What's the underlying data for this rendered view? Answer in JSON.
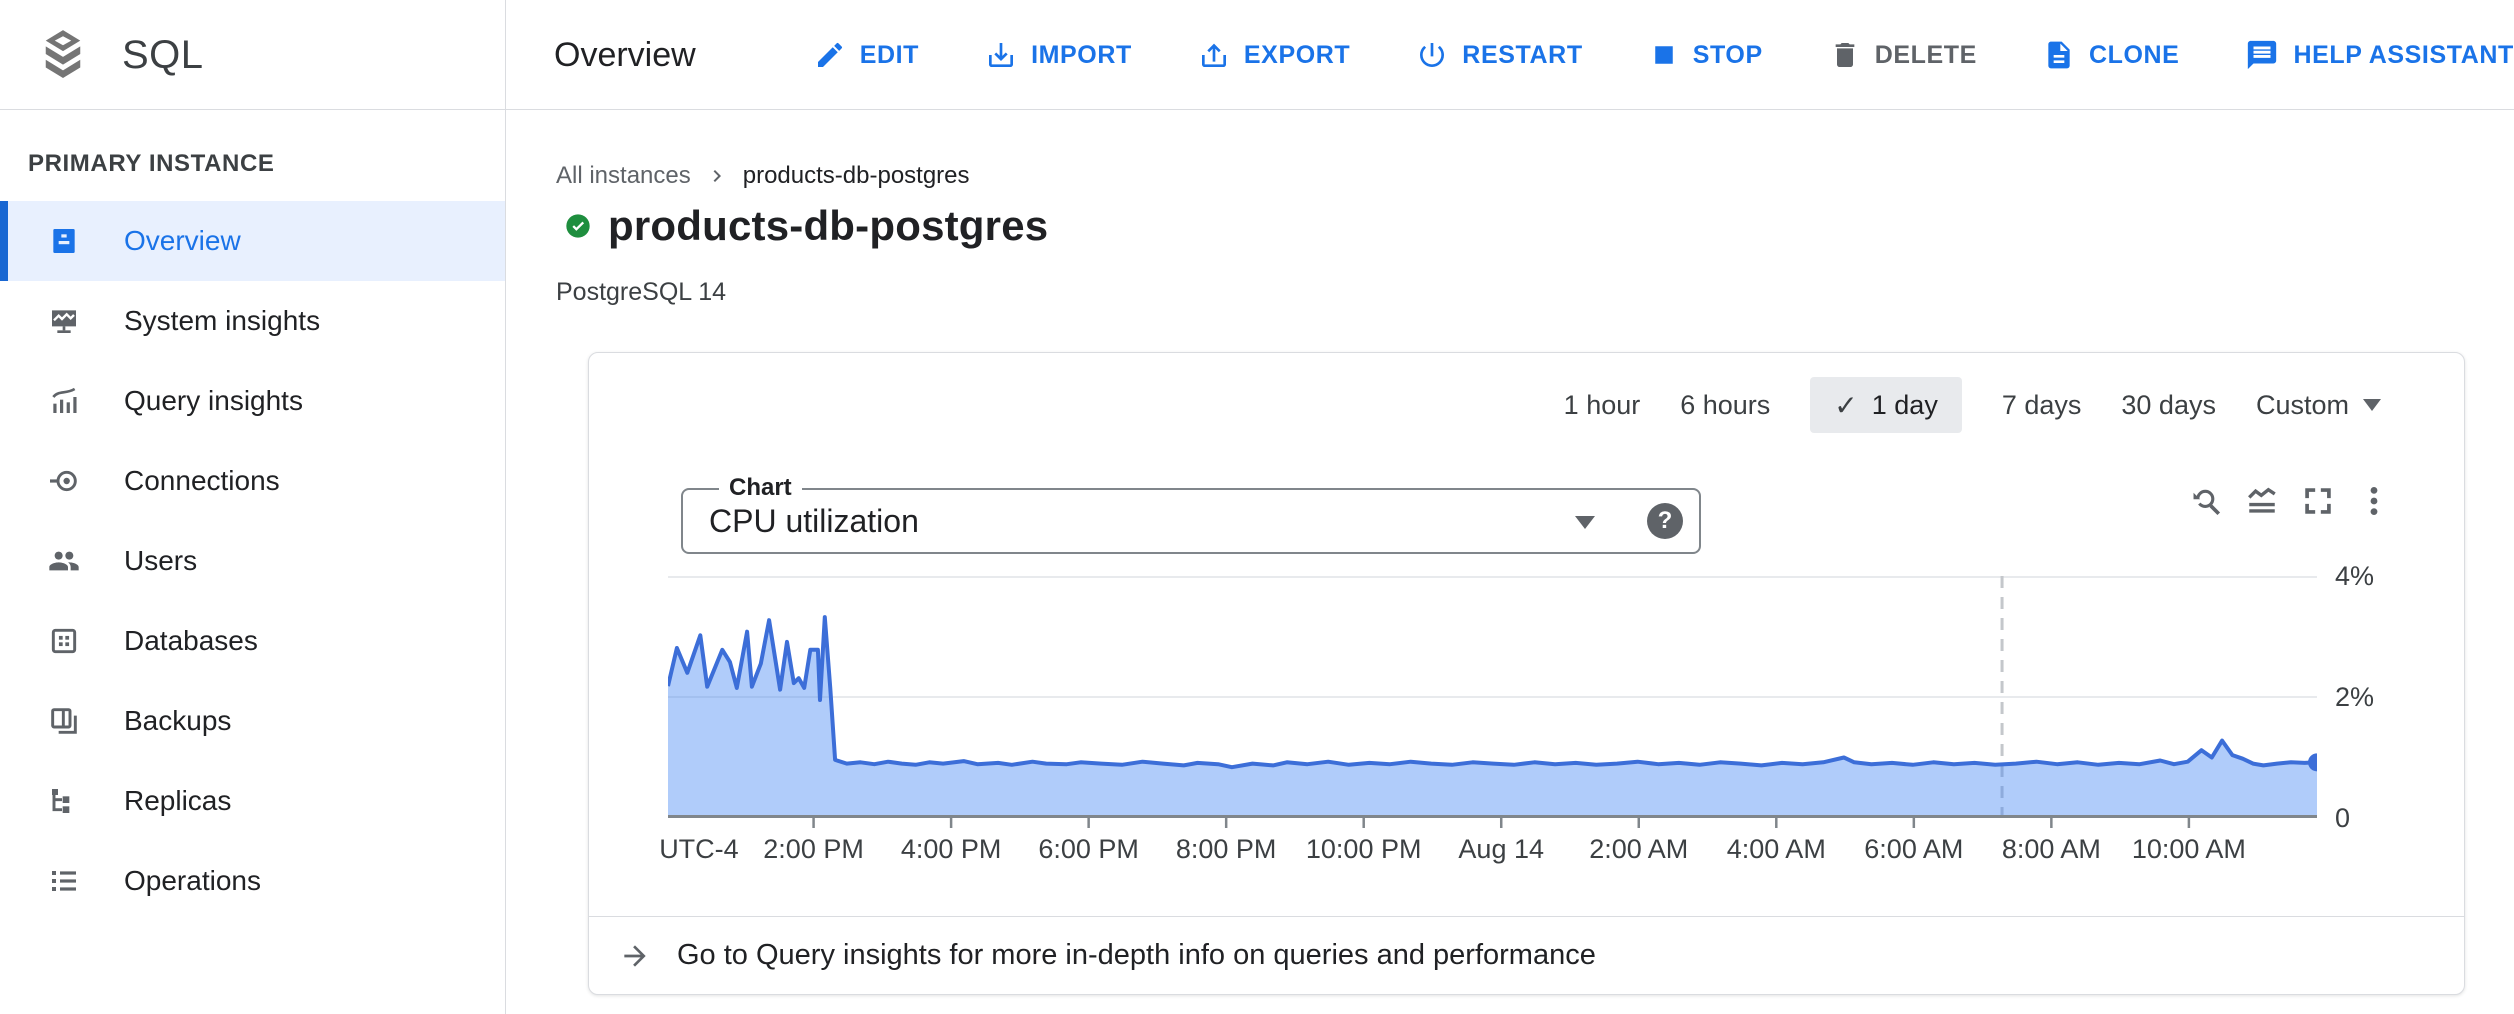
{
  "glyphs": {
    "check": "✓",
    "question_mark": "?"
  },
  "header": {
    "product": "SQL",
    "page_title": "Overview",
    "actions": [
      {
        "label": "EDIT",
        "icon": "pencil-icon",
        "state": "enabled"
      },
      {
        "label": "IMPORT",
        "icon": "import-icon",
        "state": "enabled"
      },
      {
        "label": "EXPORT",
        "icon": "export-icon",
        "state": "enabled"
      },
      {
        "label": "RESTART",
        "icon": "power-icon",
        "state": "enabled"
      },
      {
        "label": "STOP",
        "icon": "stop-icon",
        "state": "enabled"
      },
      {
        "label": "DELETE",
        "icon": "trash-icon",
        "state": "disabled"
      },
      {
        "label": "CLONE",
        "icon": "clone-icon",
        "state": "enabled"
      },
      {
        "label": "HELP ASSISTANT",
        "icon": "chat-icon",
        "state": "enabled"
      }
    ]
  },
  "sidebar": {
    "section_label": "PRIMARY INSTANCE",
    "items": [
      {
        "label": "Overview",
        "icon": "overview-icon",
        "selected": true
      },
      {
        "label": "System insights",
        "icon": "system-insights-icon",
        "selected": false
      },
      {
        "label": "Query insights",
        "icon": "query-insights-icon",
        "selected": false
      },
      {
        "label": "Connections",
        "icon": "connections-icon",
        "selected": false
      },
      {
        "label": "Users",
        "icon": "users-icon",
        "selected": false
      },
      {
        "label": "Databases",
        "icon": "databases-icon",
        "selected": false
      },
      {
        "label": "Backups",
        "icon": "backups-icon",
        "selected": false
      },
      {
        "label": "Replicas",
        "icon": "replicas-icon",
        "selected": false
      },
      {
        "label": "Operations",
        "icon": "operations-icon",
        "selected": false
      }
    ]
  },
  "breadcrumb": {
    "parent": "All instances",
    "current": "products-db-postgres"
  },
  "instance": {
    "name": "products-db-postgres",
    "status": "healthy",
    "engine": "PostgreSQL 14"
  },
  "time_range": {
    "options": [
      "1 hour",
      "6 hours",
      "1 day",
      "7 days",
      "30 days"
    ],
    "selected": "1 day",
    "custom_label": "Custom"
  },
  "chart_card": {
    "select_label": "Chart",
    "selected_metric": "CPU utilization",
    "footer_link": "Go to Query insights for more in-depth info on queries and performance"
  },
  "chart_data": {
    "type": "area",
    "title": "CPU utilization",
    "ylabel": "percent",
    "unit": "%",
    "ylim": [
      0,
      4
    ],
    "y_gridlines": [
      2,
      4
    ],
    "y_tick_labels": [
      {
        "v": 4,
        "label": "4%"
      },
      {
        "v": 2,
        "label": "2%"
      },
      {
        "v": 0,
        "label": "0"
      }
    ],
    "t_min": 0,
    "t_max": 23.98,
    "timezone_label": "UTC-4",
    "timezone_t": 0.45,
    "x_ticks": [
      {
        "t": 2.117,
        "label": "2:00 PM"
      },
      {
        "t": 4.117,
        "label": "4:00 PM"
      },
      {
        "t": 6.117,
        "label": "6:00 PM"
      },
      {
        "t": 8.117,
        "label": "8:00 PM"
      },
      {
        "t": 10.117,
        "label": "10:00 PM"
      },
      {
        "t": 12.117,
        "label": "Aug 14"
      },
      {
        "t": 14.117,
        "label": "2:00 AM"
      },
      {
        "t": 16.117,
        "label": "4:00 AM"
      },
      {
        "t": 18.117,
        "label": "6:00 AM"
      },
      {
        "t": 20.117,
        "label": "8:00 AM"
      },
      {
        "t": 22.117,
        "label": "10:00 AM"
      }
    ],
    "event_line_t": 19.4,
    "end_dot": true,
    "colors": {
      "line": "#3c6ed8",
      "fill": "rgba(66,133,244,0.42)",
      "dot": "#3c6ed8",
      "grid": "#e8eaed",
      "axis": "#80868b",
      "event_line": "#c4c7cb"
    },
    "points": [
      [
        0,
        2.18
      ],
      [
        0.13,
        2.81
      ],
      [
        0.28,
        2.4
      ],
      [
        0.47,
        3.02
      ],
      [
        0.57,
        2.17
      ],
      [
        0.79,
        2.78
      ],
      [
        0.9,
        2.58
      ],
      [
        1,
        2.15
      ],
      [
        1.15,
        3.08
      ],
      [
        1.22,
        2.17
      ],
      [
        1.35,
        2.55
      ],
      [
        1.47,
        3.27
      ],
      [
        1.63,
        2.12
      ],
      [
        1.73,
        2.91
      ],
      [
        1.83,
        2.23
      ],
      [
        1.9,
        2.31
      ],
      [
        1.98,
        2.15
      ],
      [
        2.07,
        2.78
      ],
      [
        2.18,
        2.78
      ],
      [
        2.21,
        1.95
      ],
      [
        2.28,
        3.32
      ],
      [
        2.36,
        2.14
      ],
      [
        2.43,
        0.96
      ],
      [
        2.6,
        0.9
      ],
      [
        2.8,
        0.92
      ],
      [
        3,
        0.89
      ],
      [
        3.2,
        0.93
      ],
      [
        3.4,
        0.9
      ],
      [
        3.6,
        0.88
      ],
      [
        3.8,
        0.92
      ],
      [
        4,
        0.9
      ],
      [
        4.3,
        0.94
      ],
      [
        4.5,
        0.89
      ],
      [
        4.8,
        0.91
      ],
      [
        5,
        0.88
      ],
      [
        5.3,
        0.93
      ],
      [
        5.5,
        0.9
      ],
      [
        5.8,
        0.89
      ],
      [
        6,
        0.92
      ],
      [
        6.3,
        0.9
      ],
      [
        6.6,
        0.88
      ],
      [
        6.9,
        0.93
      ],
      [
        7.2,
        0.9
      ],
      [
        7.5,
        0.87
      ],
      [
        7.7,
        0.91
      ],
      [
        8,
        0.89
      ],
      [
        8.2,
        0.84
      ],
      [
        8.5,
        0.9
      ],
      [
        8.8,
        0.87
      ],
      [
        9,
        0.92
      ],
      [
        9.3,
        0.89
      ],
      [
        9.6,
        0.93
      ],
      [
        9.9,
        0.88
      ],
      [
        10.2,
        0.91
      ],
      [
        10.5,
        0.89
      ],
      [
        10.8,
        0.93
      ],
      [
        11.1,
        0.9
      ],
      [
        11.4,
        0.88
      ],
      [
        11.7,
        0.92
      ],
      [
        12,
        0.9
      ],
      [
        12.3,
        0.88
      ],
      [
        12.6,
        0.92
      ],
      [
        12.9,
        0.89
      ],
      [
        13.2,
        0.91
      ],
      [
        13.5,
        0.88
      ],
      [
        13.8,
        0.9
      ],
      [
        14.1,
        0.93
      ],
      [
        14.4,
        0.89
      ],
      [
        14.7,
        0.91
      ],
      [
        15,
        0.88
      ],
      [
        15.3,
        0.92
      ],
      [
        15.6,
        0.9
      ],
      [
        15.9,
        0.87
      ],
      [
        16.2,
        0.91
      ],
      [
        16.5,
        0.89
      ],
      [
        16.8,
        0.92
      ],
      [
        17.1,
        1
      ],
      [
        17.25,
        0.92
      ],
      [
        17.5,
        0.89
      ],
      [
        17.8,
        0.91
      ],
      [
        18.1,
        0.88
      ],
      [
        18.4,
        0.92
      ],
      [
        18.7,
        0.89
      ],
      [
        19,
        0.91
      ],
      [
        19.3,
        0.88
      ],
      [
        19.6,
        0.9
      ],
      [
        19.9,
        0.93
      ],
      [
        20.2,
        0.89
      ],
      [
        20.5,
        0.92
      ],
      [
        20.8,
        0.88
      ],
      [
        21.1,
        0.91
      ],
      [
        21.4,
        0.89
      ],
      [
        21.7,
        0.95
      ],
      [
        21.9,
        0.89
      ],
      [
        22.1,
        0.93
      ],
      [
        22.3,
        1.12
      ],
      [
        22.45,
        1
      ],
      [
        22.6,
        1.28
      ],
      [
        22.75,
        1.04
      ],
      [
        22.9,
        0.98
      ],
      [
        23.05,
        0.9
      ],
      [
        23.2,
        0.87
      ],
      [
        23.4,
        0.9
      ],
      [
        23.6,
        0.92
      ],
      [
        23.8,
        0.91
      ],
      [
        23.98,
        0.92
      ]
    ]
  }
}
